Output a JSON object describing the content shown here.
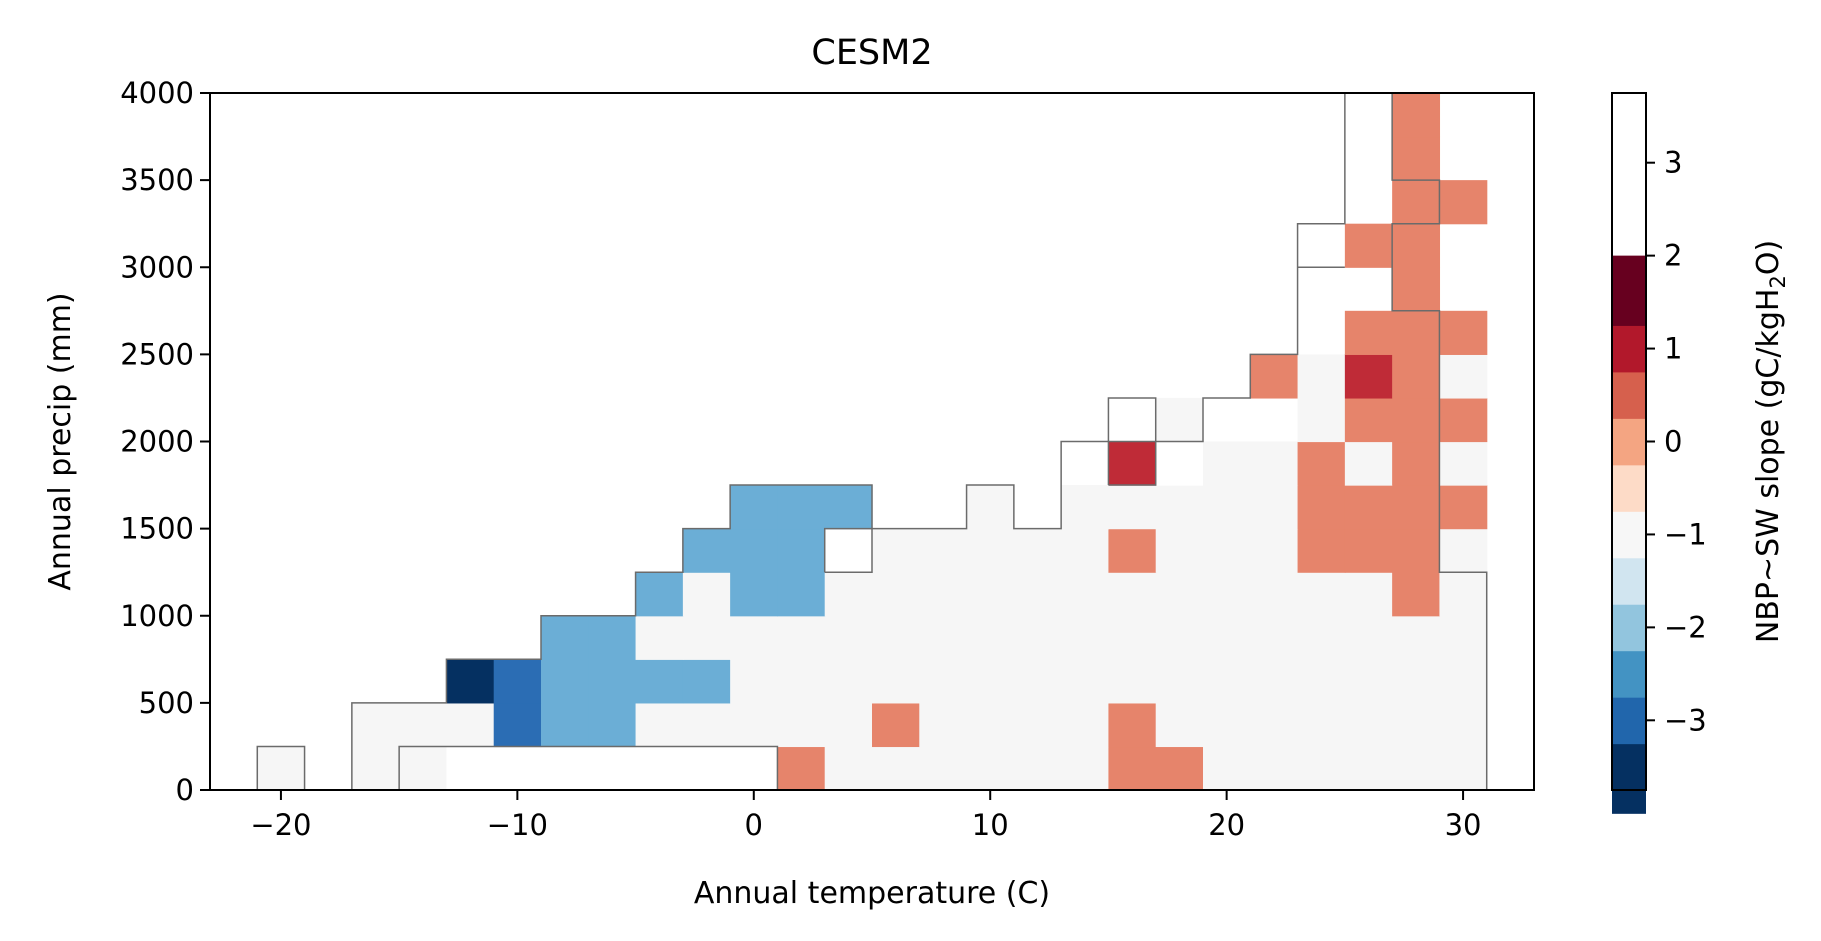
{
  "chart_data": {
    "type": "heatmap",
    "title": "CESM2",
    "xlabel": "Annual temperature (C)",
    "ylabel": "Annual precip (mm)",
    "xlim": [
      -23,
      33
    ],
    "ylim": [
      0,
      4000
    ],
    "x_ticks": [
      -20,
      -10,
      0,
      10,
      20,
      30
    ],
    "x_tick_labels": [
      "−20",
      "−10",
      "0",
      "10",
      "20",
      "30"
    ],
    "y_ticks": [
      0,
      500,
      1000,
      1500,
      2000,
      2500,
      3000,
      3500,
      4000
    ],
    "y_tick_labels": [
      "0",
      "500",
      "1000",
      "1500",
      "2000",
      "2500",
      "3000",
      "3500",
      "4000"
    ],
    "x_bin_start": -21,
    "x_bin_width": 2,
    "y_bin_width": 250,
    "colorbar": {
      "label_parts": [
        "NBP~SW slope (gC/kgH",
        "2",
        "O)"
      ],
      "boundaries": [
        -3.75,
        -3.25,
        -2.75,
        -2.25,
        -1.75,
        -1.25,
        -0.75,
        -0.25,
        0.25,
        0.75,
        1.25,
        1.75,
        2.25,
        2.75,
        3.25,
        3.75
      ],
      "ticks": [
        -3,
        -2,
        -1,
        0,
        1,
        2,
        3
      ],
      "tick_labels": [
        "−3",
        "−2",
        "−1",
        "0",
        "1",
        "2",
        "3"
      ],
      "colors": [
        "#053061",
        "#2166ac",
        "#4393c3",
        "#92c5de",
        "#d1e5f0",
        "#f7f7f7",
        "#fddbc7",
        "#f4a582",
        "#d6604d",
        "#b2182b",
        "#67001f"
      ],
      "display_colors": [
        "#053061",
        "#2b6db4",
        "#6baed6",
        "#c3dfec",
        "#f6f6f6",
        "#facdb5",
        "#e6846b",
        "#bf2b37",
        "#6b0019"
      ]
    },
    "rows": [
      {
        "y_range": [
          0,
          250
        ],
        "cells": [
          0,
          "nan",
          0,
          0,
          "nan",
          "nan",
          "nan",
          "nan",
          "nan",
          "nan",
          "nan",
          1,
          0,
          0,
          0,
          0,
          0,
          0,
          1,
          1,
          0,
          0,
          0,
          0,
          0,
          0
        ]
      },
      {
        "y_range": [
          250,
          500
        ],
        "cells": [
          null,
          null,
          0,
          0,
          0,
          -1.5,
          -1,
          -1,
          0,
          0,
          0,
          0,
          0,
          1,
          0,
          0,
          0,
          0,
          1,
          0,
          0,
          0,
          0,
          0,
          0,
          0
        ]
      },
      {
        "y_range": [
          500,
          750
        ],
        "cells": [
          null,
          null,
          null,
          null,
          -2.5,
          -1.5,
          -1,
          -1,
          -1,
          -1,
          0,
          0,
          0,
          0,
          0,
          0,
          0,
          0,
          0,
          0,
          0,
          0,
          0,
          0,
          0,
          0
        ]
      },
      {
        "y_range": [
          750,
          1000
        ],
        "cells": [
          null,
          null,
          null,
          null,
          null,
          null,
          -1,
          -1,
          0,
          0,
          0,
          0,
          0,
          0,
          0,
          0,
          0,
          0,
          0,
          0,
          0,
          0,
          0,
          0,
          0,
          0
        ]
      },
      {
        "y_range": [
          1000,
          1250
        ],
        "cells": [
          null,
          null,
          null,
          null,
          null,
          null,
          null,
          null,
          -1,
          0,
          -1,
          -1,
          0,
          0,
          0,
          0,
          0,
          0,
          0,
          0,
          0,
          0,
          0,
          0,
          1,
          0
        ]
      },
      {
        "y_range": [
          1250,
          1500
        ],
        "cells": [
          null,
          null,
          null,
          null,
          null,
          null,
          null,
          null,
          null,
          -1,
          -1,
          -1,
          "nan",
          0,
          0,
          0,
          0,
          0,
          1,
          0,
          0,
          0,
          1,
          1,
          1,
          0
        ]
      },
      {
        "y_range": [
          1500,
          1750
        ],
        "cells": [
          null,
          null,
          null,
          null,
          null,
          null,
          null,
          null,
          null,
          null,
          -1,
          -1,
          -1,
          null,
          null,
          0,
          null,
          0,
          0,
          0,
          0,
          0,
          1,
          1,
          1,
          1
        ]
      },
      {
        "y_range": [
          1750,
          2000
        ],
        "cells": [
          null,
          null,
          null,
          null,
          null,
          null,
          null,
          null,
          null,
          null,
          null,
          null,
          null,
          null,
          null,
          null,
          null,
          null,
          1.5,
          "nan",
          0,
          0,
          1,
          0,
          1,
          0
        ]
      },
      {
        "y_range": [
          2000,
          2250
        ],
        "cells": [
          null,
          null,
          null,
          null,
          null,
          null,
          null,
          null,
          null,
          null,
          null,
          null,
          null,
          null,
          null,
          null,
          null,
          null,
          null,
          0,
          null,
          null,
          0,
          1,
          1,
          1
        ]
      },
      {
        "y_range": [
          2250,
          2500
        ],
        "cells": [
          null,
          null,
          null,
          null,
          null,
          null,
          null,
          null,
          null,
          null,
          null,
          null,
          null,
          null,
          null,
          null,
          null,
          null,
          null,
          null,
          null,
          1,
          0,
          1.5,
          1,
          0
        ]
      },
      {
        "y_range": [
          2500,
          2750
        ],
        "cells": [
          null,
          null,
          null,
          null,
          null,
          null,
          null,
          null,
          null,
          null,
          null,
          null,
          null,
          null,
          null,
          null,
          null,
          null,
          null,
          null,
          null,
          null,
          null,
          1,
          1,
          1
        ]
      },
      {
        "y_range": [
          2750,
          3000
        ],
        "cells": [
          null,
          null,
          null,
          null,
          null,
          null,
          null,
          null,
          null,
          null,
          null,
          null,
          null,
          null,
          null,
          null,
          null,
          null,
          null,
          null,
          null,
          null,
          null,
          null,
          1,
          null
        ]
      },
      {
        "y_range": [
          3000,
          3250
        ],
        "cells": [
          null,
          null,
          null,
          null,
          null,
          null,
          null,
          null,
          null,
          null,
          null,
          null,
          null,
          null,
          null,
          null,
          null,
          null,
          null,
          null,
          null,
          null,
          null,
          1,
          1,
          null
        ]
      },
      {
        "y_range": [
          3250,
          3500
        ],
        "cells": [
          null,
          null,
          null,
          null,
          null,
          null,
          null,
          null,
          null,
          null,
          null,
          null,
          null,
          null,
          null,
          null,
          null,
          null,
          null,
          null,
          null,
          null,
          null,
          null,
          1,
          1
        ]
      },
      {
        "y_range": [
          3500,
          3750
        ],
        "cells": [
          null,
          null,
          null,
          null,
          null,
          null,
          null,
          null,
          null,
          null,
          null,
          null,
          null,
          null,
          null,
          null,
          null,
          null,
          null,
          null,
          null,
          null,
          null,
          null,
          1,
          null
        ]
      },
      {
        "y_range": [
          3750,
          4000
        ],
        "cells": [
          null,
          null,
          null,
          null,
          null,
          null,
          null,
          null,
          null,
          null,
          null,
          null,
          null,
          null,
          null,
          null,
          null,
          null,
          null,
          null,
          null,
          null,
          null,
          null,
          1,
          null
        ]
      }
    ],
    "outline_segments": [
      [
        [
          -21,
          0
        ],
        [
          -21,
          250
        ],
        [
          -19,
          250
        ],
        [
          -19,
          0
        ]
      ],
      [
        [
          -17,
          0
        ],
        [
          -17,
          500
        ],
        [
          -13,
          500
        ],
        [
          -13,
          750
        ],
        [
          -9,
          750
        ],
        [
          -9,
          1000
        ],
        [
          -5,
          1000
        ],
        [
          -5,
          1250
        ],
        [
          -3,
          1250
        ],
        [
          -3,
          1500
        ],
        [
          -1,
          1500
        ],
        [
          -1,
          1750
        ],
        [
          5,
          1750
        ],
        [
          5,
          1500
        ],
        [
          9,
          1500
        ],
        [
          9,
          1750
        ],
        [
          11,
          1750
        ],
        [
          11,
          1500
        ],
        [
          13,
          1500
        ],
        [
          13,
          2000
        ],
        [
          15,
          2000
        ],
        [
          15,
          2250
        ],
        [
          17,
          2250
        ],
        [
          17,
          2000
        ],
        [
          19,
          2000
        ],
        [
          19,
          2250
        ],
        [
          21,
          2250
        ],
        [
          21,
          2500
        ],
        [
          23,
          2500
        ],
        [
          23,
          3250
        ],
        [
          25,
          3250
        ],
        [
          25,
          4000
        ],
        [
          27,
          4000
        ],
        [
          27,
          3500
        ],
        [
          29,
          3500
        ],
        [
          29,
          3250
        ],
        [
          27,
          3250
        ],
        [
          27,
          2750
        ],
        [
          29,
          2750
        ],
        [
          29,
          1250
        ],
        [
          31,
          1250
        ],
        [
          31,
          0
        ]
      ],
      [
        [
          -15,
          0
        ],
        [
          -15,
          250
        ],
        [
          1,
          250
        ],
        [
          1,
          0
        ]
      ],
      [
        [
          3,
          1250
        ],
        [
          3,
          1500
        ],
        [
          5,
          1500
        ],
        [
          5,
          1250
        ],
        [
          3,
          1250
        ]
      ],
      [
        [
          15,
          1750
        ],
        [
          15,
          2000
        ],
        [
          17,
          2000
        ],
        [
          17,
          1750
        ],
        [
          15,
          1750
        ]
      ],
      [
        [
          23,
          3000
        ],
        [
          25,
          3000
        ]
      ]
    ],
    "grid": false,
    "legend": "none"
  }
}
